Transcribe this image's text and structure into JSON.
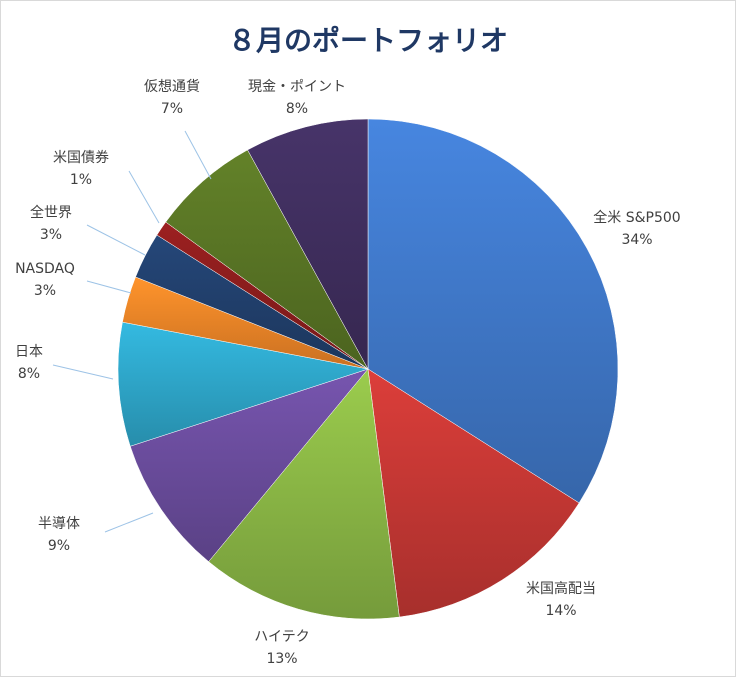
{
  "chart_data": {
    "type": "pie",
    "title": "８月のポートフォリオ",
    "slices": [
      {
        "label": "全米 S&P500",
        "value": 34,
        "value_label": "34%",
        "color": "#3f78c8"
      },
      {
        "label": "米国高配当",
        "value": 14,
        "value_label": "14%",
        "color": "#c43734"
      },
      {
        "label": "ハイテク",
        "value": 13,
        "value_label": "13%",
        "color": "#8ab645"
      },
      {
        "label": "半導体",
        "value": 9,
        "value_label": "9%",
        "color": "#6a4c9c"
      },
      {
        "label": "日本",
        "value": 8,
        "value_label": "8%",
        "color": "#2ea6c9"
      },
      {
        "label": "NASDAQ",
        "value": 3,
        "value_label": "3%",
        "color": "#ee8427"
      },
      {
        "label": "全世界",
        "value": 3,
        "value_label": "3%",
        "color": "#213f6c"
      },
      {
        "label": "米国債券",
        "value": 1,
        "value_label": "1%",
        "color": "#8b1d1d"
      },
      {
        "label": "仮想通貨",
        "value": 7,
        "value_label": "7%",
        "color": "#587425"
      },
      {
        "label": "現金・ポイント",
        "value": 8,
        "value_label": "8%",
        "color": "#3f2e5e"
      }
    ],
    "legend": "none",
    "start_angle": "12 o'clock",
    "direction": "clockwise"
  }
}
